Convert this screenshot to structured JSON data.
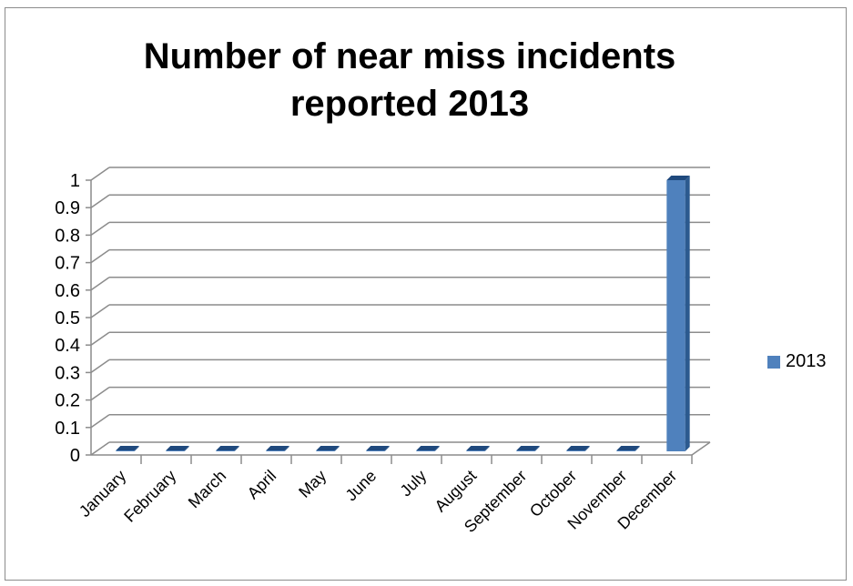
{
  "chart_data": {
    "type": "bar",
    "title_line1": "Number of near miss incidents",
    "title_line2": "reported 2013",
    "categories": [
      "January",
      "February",
      "March",
      "April",
      "May",
      "June",
      "July",
      "August",
      "September",
      "October",
      "November",
      "December"
    ],
    "series": [
      {
        "name": "2013",
        "values": [
          0,
          0,
          0,
          0,
          0,
          0,
          0,
          0,
          0,
          0,
          0,
          1
        ],
        "color": "#4f81bd"
      }
    ],
    "ylim": [
      0,
      1
    ],
    "yticks": [
      "0",
      "0.1",
      "0.2",
      "0.3",
      "0.4",
      "0.5",
      "0.6",
      "0.7",
      "0.8",
      "0.9",
      "1"
    ],
    "grid": true,
    "legend_position": "right",
    "style": "3d-column"
  }
}
